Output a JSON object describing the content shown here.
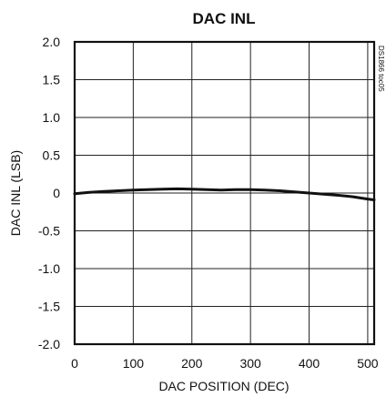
{
  "chart_data": {
    "type": "line",
    "title": "DAC INL",
    "xlabel": "DAC POSITION (DEC)",
    "ylabel": "DAC INL (LSB)",
    "xlim": [
      0,
      511
    ],
    "ylim": [
      -2.0,
      2.0
    ],
    "x_ticks": [
      0,
      100,
      200,
      300,
      400,
      500
    ],
    "x_tick_labels": [
      "0",
      "100",
      "200",
      "300",
      "400",
      "500"
    ],
    "y_ticks": [
      2.0,
      1.5,
      1.0,
      0.5,
      0,
      -0.5,
      -1.0,
      -1.5,
      -2.0
    ],
    "y_tick_labels": [
      "2.0",
      "1.5",
      "1.0",
      "0.5",
      "0",
      "-0.5",
      "-1.0",
      "-1.5",
      "-2.0"
    ],
    "grid": true,
    "side_note": "DS1866 toc05",
    "series": [
      {
        "x": [
          0,
          25,
          50,
          75,
          100,
          125,
          150,
          175,
          200,
          225,
          250,
          275,
          300,
          325,
          350,
          375,
          400,
          425,
          450,
          475,
          500,
          511
        ],
        "y": [
          -0.01,
          0.01,
          0.02,
          0.03,
          0.04,
          0.045,
          0.05,
          0.055,
          0.05,
          0.045,
          0.04,
          0.045,
          0.045,
          0.04,
          0.03,
          0.015,
          0.0,
          -0.015,
          -0.03,
          -0.05,
          -0.08,
          -0.09
        ]
      }
    ]
  }
}
